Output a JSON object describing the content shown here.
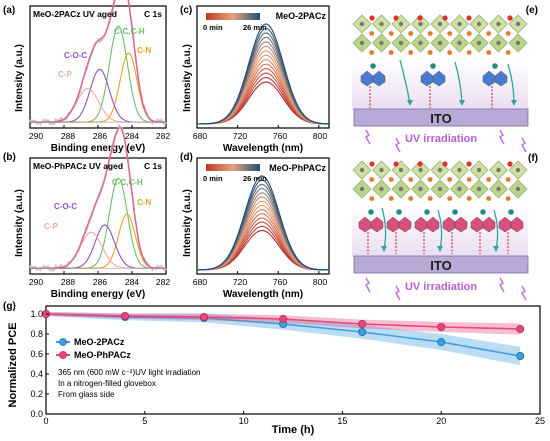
{
  "panels": {
    "a": {
      "letter": "(a)",
      "title": "MeO-2PACz UV aged",
      "core": "C 1s",
      "labels": {
        "cc": "C-C,C-H",
        "cn": "C-N",
        "coc": "C-O-C",
        "cp": "C-P"
      },
      "xlabel": "Binding energy (eV)",
      "ylabel": "Intensity (a.u.)",
      "xticks": [
        "290",
        "288",
        "286",
        "284",
        "282"
      ]
    },
    "b": {
      "letter": "(b)",
      "title": "MeO-PhPACz UV aged",
      "core": "C 1s",
      "labels": {
        "cc": "C-C,C-H",
        "cn": "C-N",
        "coc": "C-O-C",
        "cp": "C-P"
      },
      "xlabel": "Binding energy (eV)",
      "ylabel": "Intensity (a.u.)",
      "xticks": [
        "290",
        "288",
        "286",
        "284",
        "282"
      ]
    },
    "c": {
      "letter": "(c)",
      "title": "MeO-2PACz",
      "t_start": "0 min",
      "t_end": "26 min",
      "xlabel": "Wavelength (nm)",
      "ylabel": "Intensity (a.u.)",
      "xticks": [
        "680",
        "720",
        "760",
        "800"
      ]
    },
    "d": {
      "letter": "(d)",
      "title": "MeO-PhPACz",
      "t_start": "0 min",
      "t_end": "26 min",
      "xlabel": "Wavelength (nm)",
      "ylabel": "Intensity (a.u.)",
      "xticks": [
        "680",
        "720",
        "760",
        "800"
      ]
    },
    "e": {
      "letter": "(e)",
      "substrate": "ITO",
      "caption": "UV irradiation"
    },
    "f": {
      "letter": "(f)",
      "substrate": "ITO",
      "caption": "UV irradiation"
    },
    "g": {
      "letter": "(g)",
      "notes": [
        "365 nm (600 mW c⁻²)UV light irradiation",
        "In a nitrogen-filled glovebox",
        "From glass side"
      ]
    }
  },
  "colors": {
    "series_blue": "#3b9ede",
    "series_pink": "#e8467c",
    "xps_envelope": "#e0608f",
    "xps_cc": "#6cbf6a",
    "xps_cn": "#f0a020",
    "xps_coc": "#8b52c9",
    "xps_cp": "#f4a6a0",
    "ito_bar": "#b9a9d6",
    "uv_text": "#b85fd6",
    "spectrum_dark": "#1f4e79",
    "spectrum_red": "#b52a2a"
  },
  "chart_data": [
    {
      "type": "line",
      "panel": "a",
      "title": "MeO-2PACz UV aged",
      "xlabel": "Binding energy (eV)",
      "ylabel": "Intensity (a.u.)",
      "xlim": [
        290,
        282
      ],
      "x_reversed": true,
      "series": [
        {
          "name": "C-C,C-H",
          "center": 284.8
        },
        {
          "name": "C-N",
          "center": 284.2
        },
        {
          "name": "C-O-C",
          "center": 285.9
        },
        {
          "name": "C-P",
          "center": 286.6
        }
      ]
    },
    {
      "type": "line",
      "panel": "b",
      "title": "MeO-PhPACz UV aged",
      "xlabel": "Binding energy (eV)",
      "ylabel": "Intensity (a.u.)",
      "xlim": [
        290,
        282
      ],
      "x_reversed": true,
      "series": [
        {
          "name": "C-C,C-H",
          "center": 284.8
        },
        {
          "name": "C-N",
          "center": 284.3
        },
        {
          "name": "C-O-C",
          "center": 285.6
        },
        {
          "name": "C-P",
          "center": 286.4
        }
      ]
    },
    {
      "type": "line",
      "panel": "c",
      "title": "MeO-2PACz",
      "xlabel": "Wavelength (nm)",
      "ylabel": "Intensity (a.u.)",
      "xlim": [
        680,
        810
      ],
      "peak_nm": 748,
      "time_range_min": [
        0,
        26
      ]
    },
    {
      "type": "line",
      "panel": "d",
      "title": "MeO-PhPACz",
      "xlabel": "Wavelength (nm)",
      "ylabel": "Intensity (a.u.)",
      "xlim": [
        680,
        810
      ],
      "peak_nm": 744,
      "time_range_min": [
        0,
        26
      ]
    },
    {
      "type": "line",
      "panel": "g",
      "xlabel": "Time (h)",
      "ylabel": "Normalized PCE",
      "xlim": [
        0,
        25
      ],
      "ylim": [
        0.0,
        1.0
      ],
      "xticks": [
        0,
        5,
        10,
        15,
        20,
        25
      ],
      "yticks": [
        0.0,
        0.2,
        0.4,
        0.6,
        0.8,
        1.0
      ],
      "legend": "top-left",
      "series": [
        {
          "name": "MeO-2PACz",
          "x": [
            0,
            4,
            8,
            12,
            16,
            20,
            24
          ],
          "y": [
            1.0,
            0.97,
            0.96,
            0.9,
            0.82,
            0.72,
            0.58
          ]
        },
        {
          "name": "MeO-PhPACz",
          "x": [
            0,
            4,
            8,
            12,
            16,
            20,
            24
          ],
          "y": [
            1.0,
            0.98,
            0.97,
            0.95,
            0.9,
            0.87,
            0.85
          ]
        }
      ]
    }
  ]
}
